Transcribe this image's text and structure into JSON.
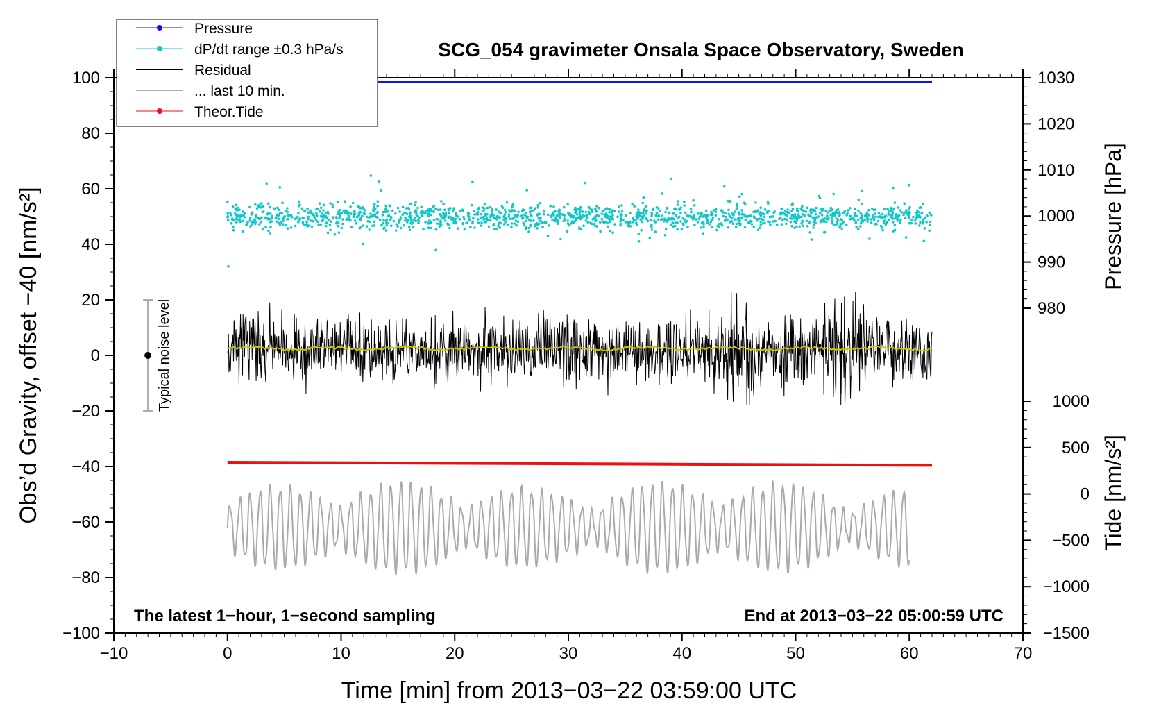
{
  "chart_data": {
    "type": "line",
    "title": "SCG_054 gravimeter Onsala Space Observatory, Sweden",
    "xlabel": "Time [min] from 2013−03−22 03:59:00 UTC",
    "ylabel": "Obs’d Gravity, offset −40 [nm/s²]",
    "xlim": [
      -10,
      70
    ],
    "ylim": [
      -100,
      100
    ],
    "x_ticks": [
      "−10",
      "0",
      "10",
      "20",
      "30",
      "40",
      "50",
      "60",
      "70"
    ],
    "x_tick_values": [
      -10,
      0,
      10,
      20,
      30,
      40,
      50,
      60,
      70
    ],
    "y_ticks": [
      "−100",
      "−80",
      "−60",
      "−40",
      "−20",
      "0",
      "20",
      "40",
      "60",
      "80",
      "100"
    ],
    "y_tick_values": [
      -100,
      -80,
      -60,
      -40,
      -20,
      0,
      20,
      40,
      60,
      80,
      100
    ],
    "right_axis_pressure": {
      "label": "Pressure [hPa]",
      "ticks": [
        "980",
        "990",
        "1000",
        "1010",
        "1020",
        "1030"
      ],
      "tick_values": [
        980,
        990,
        1000,
        1010,
        1020,
        1030
      ],
      "range": [
        980,
        1030
      ]
    },
    "right_axis_tide": {
      "label": "Tide [nm/s²]",
      "ticks": [
        "−1500",
        "−1000",
        "−500",
        "0",
        "500",
        "1000"
      ],
      "tick_values": [
        -1500,
        -1000,
        -500,
        0,
        500,
        1000
      ],
      "range": [
        -1500,
        1000
      ]
    },
    "legend": {
      "placement": "top-left",
      "entries": [
        {
          "label": "Pressure",
          "color": "#1010ee",
          "marker": "dot"
        },
        {
          "label": "dP/dt range ±0.3 hPa/s",
          "color": "#10c8c8",
          "marker": "dot"
        },
        {
          "label": "Residual",
          "color": "#000000",
          "marker": "line"
        },
        {
          "label": "... last 10 min.",
          "color": "#aaaaaa",
          "marker": "line"
        },
        {
          "label": "Theor.Tide",
          "color": "#ee1010",
          "marker": "dot"
        }
      ]
    },
    "series": [
      {
        "name": "Pressure",
        "color": "#1010ee",
        "x_range": [
          0,
          62
        ],
        "y_approx": 98.5,
        "pressure_hPa": 1029.7
      },
      {
        "name": "dP/dt range",
        "color": "#10c8c8",
        "x_range": [
          0,
          62
        ],
        "y_center": 50,
        "y_spread": 14
      },
      {
        "name": "Residual",
        "color": "#000000",
        "x_range": [
          0,
          62
        ],
        "y_center": 0,
        "y_range": [
          -18,
          23
        ]
      },
      {
        "name": "Residual (smoothed)",
        "color": "#c8c800",
        "x_range": [
          0,
          62
        ],
        "y_approx": 2.5
      },
      {
        "name": "Theor.Tide",
        "color": "#ee1010",
        "x": [
          0,
          62
        ],
        "y": [
          -38.5,
          -39.6
        ]
      },
      {
        "name": "... last 10 min.",
        "color": "#aaaaaa",
        "x_range": [
          0,
          60
        ],
        "y_center": -62,
        "y_range": [
          -82,
          -41
        ]
      }
    ],
    "noise_bar": {
      "x": -7,
      "y_center": 0,
      "y_low": -20,
      "y_high": 20,
      "label": "Typical noise level"
    },
    "annotations": {
      "left": "The latest 1−hour, 1−second sampling",
      "right": "End at 2013−03−22 05:00:59 UTC"
    }
  }
}
